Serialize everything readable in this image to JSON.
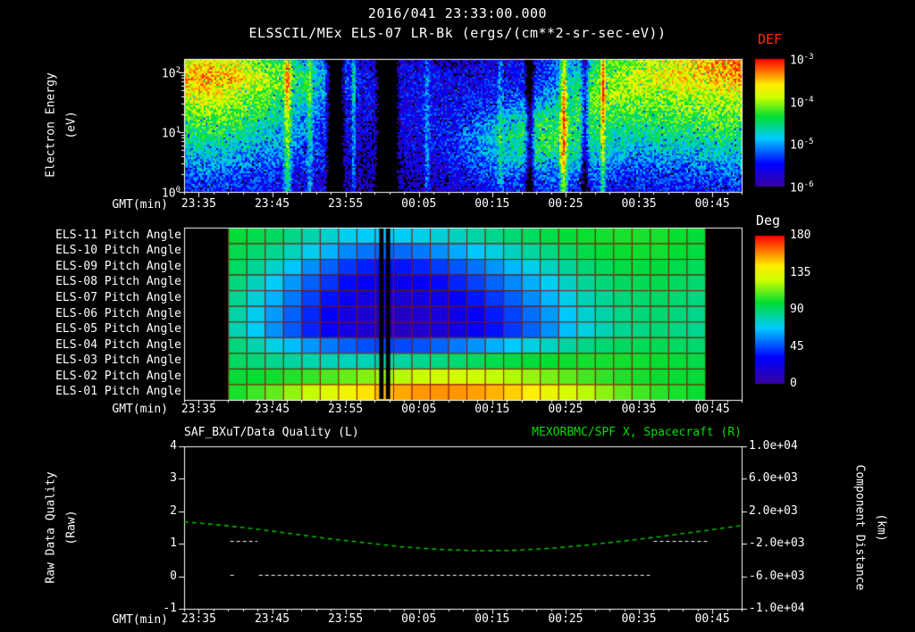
{
  "header": {
    "datetime": "2016/041 23:33:00.000",
    "instrument": "ELSSCIL/MEx ELS-07 LR-Bk  (ergs/(cm**2-sr-sec-eV))"
  },
  "time_axis": {
    "label": "GMT(min)",
    "start": "23:33",
    "span_minutes": 76,
    "ticks": [
      "23:35",
      "23:45",
      "23:55",
      "00:05",
      "00:15",
      "00:25",
      "00:35",
      "00:45"
    ]
  },
  "colors": {
    "background": "#000000",
    "foreground": "#ffffff",
    "accent_green": "#00dd00",
    "accent_red": "#ff2d00",
    "grid_maroon": "#801800"
  },
  "chart_data": [
    {
      "type": "heatmap",
      "name": "electron-energy-spectrogram",
      "ylabel": "Electron Energy",
      "ylabel_units": "(eV)",
      "yscale": "log",
      "y_tick_exponents": [
        2,
        1,
        0
      ],
      "energy_range_ev": [
        1,
        166
      ],
      "colorbar": {
        "label": "DEF",
        "tick_exponents": [
          -3,
          -4,
          -5,
          -6
        ],
        "log10_range": [
          -6,
          -3
        ]
      },
      "grid_log10_flux": [
        [
          -3.8,
          -3.7,
          -3.8,
          -4.1,
          -4.4,
          -4.8,
          -5.2,
          -5.6,
          -5.8,
          -5.7,
          -5.7,
          -5.8,
          -5.7,
          -5.6,
          -5.6,
          -5.4,
          -5.0,
          -4.5,
          -4.2,
          -4.0,
          -3.8,
          -3.6,
          -3.4,
          -3.3
        ],
        [
          -3.5,
          -3.4,
          -3.5,
          -3.8,
          -4.1,
          -4.5,
          -5.0,
          -5.4,
          -5.6,
          -5.6,
          -5.5,
          -5.6,
          -5.6,
          -5.5,
          -5.4,
          -5.2,
          -4.7,
          -4.2,
          -3.9,
          -3.8,
          -3.7,
          -3.6,
          -3.5,
          -3.4
        ],
        [
          -3.8,
          -3.7,
          -3.9,
          -4.1,
          -4.4,
          -4.7,
          -5.1,
          -5.5,
          -5.6,
          -5.6,
          -5.5,
          -5.5,
          -5.5,
          -5.4,
          -5.2,
          -5.0,
          -4.5,
          -4.1,
          -4.0,
          -4.0,
          -4.0,
          -3.9,
          -3.9,
          -3.8
        ],
        [
          -4.2,
          -4.1,
          -4.2,
          -4.4,
          -4.7,
          -5.0,
          -5.3,
          -5.6,
          -5.7,
          -5.6,
          -5.5,
          -5.5,
          -5.3,
          -5.0,
          -4.6,
          -4.4,
          -4.4,
          -4.3,
          -4.3,
          -4.3,
          -4.3,
          -4.2,
          -4.2,
          -4.1
        ],
        [
          -4.5,
          -4.4,
          -4.5,
          -4.7,
          -4.9,
          -5.1,
          -5.4,
          -5.7,
          -5.7,
          -5.6,
          -5.5,
          -5.4,
          -5.1,
          -4.7,
          -4.4,
          -4.3,
          -4.4,
          -4.5,
          -4.6,
          -4.6,
          -4.5,
          -4.5,
          -4.4,
          -4.4
        ],
        [
          -4.9,
          -4.8,
          -4.9,
          -5.0,
          -5.1,
          -5.3,
          -5.5,
          -5.8,
          -5.8,
          -5.7,
          -5.6,
          -5.4,
          -5.2,
          -4.9,
          -4.6,
          -4.5,
          -4.6,
          -4.8,
          -4.9,
          -5.0,
          -4.9,
          -4.9,
          -4.8,
          -4.8
        ],
        [
          -5.2,
          -5.1,
          -5.2,
          -5.3,
          -5.4,
          -5.5,
          -5.6,
          -5.8,
          -5.9,
          -5.8,
          -5.7,
          -5.6,
          -5.4,
          -5.2,
          -5.1,
          -5.1,
          -5.1,
          -5.2,
          -5.3,
          -5.3,
          -5.3,
          -5.2,
          -5.2,
          -5.2
        ],
        [
          -5.5,
          -5.4,
          -5.5,
          -5.5,
          -5.6,
          -5.6,
          -5.7,
          -5.9,
          -5.9,
          -5.9,
          -5.8,
          -5.7,
          -5.6,
          -5.5,
          -5.5,
          -5.4,
          -5.5,
          -5.5,
          -5.6,
          -5.5,
          -5.5,
          -5.5,
          -5.5,
          -5.4
        ]
      ],
      "streaks": [
        {
          "min": 14,
          "halfwidth": 0.7,
          "amp": 1.1
        },
        {
          "min": 17,
          "halfwidth": 0.5,
          "amp": 0.7
        },
        {
          "min": 20.5,
          "halfwidth": 1.4,
          "amp": -2.4
        },
        {
          "min": 23,
          "halfwidth": 0.4,
          "amp": 0.9
        },
        {
          "min": 27.6,
          "halfwidth": 1.7,
          "amp": -2.6
        },
        {
          "min": 33,
          "halfwidth": 0.5,
          "amp": 0.6
        },
        {
          "min": 43,
          "halfwidth": 0.5,
          "amp": 0.5
        },
        {
          "min": 47,
          "halfwidth": 0.8,
          "amp": -1.4
        },
        {
          "min": 51.6,
          "halfwidth": 0.7,
          "amp": 1.4
        },
        {
          "min": 54.5,
          "halfwidth": 0.7,
          "amp": -1.2
        },
        {
          "min": 57,
          "halfwidth": 0.5,
          "amp": 1.0
        }
      ]
    },
    {
      "type": "heatmap",
      "name": "pitch-angle-panel",
      "value_range_deg": [
        0,
        180
      ],
      "colorbar": {
        "label": "Deg",
        "ticks": [
          180,
          135,
          90,
          45,
          0
        ]
      },
      "data_start": "23:39",
      "data_end": "00:44",
      "gaps_min": [
        [
          26.6,
          27.2
        ],
        [
          27.5,
          28.1
        ]
      ],
      "rows": [
        {
          "label": "ELS-11 Pitch Angle",
          "values": [
            98,
            92,
            80,
            70,
            68,
            72,
            80,
            88,
            95,
            100,
            102,
            102,
            98
          ]
        },
        {
          "label": "ELS-10 Pitch Angle",
          "values": [
            95,
            85,
            70,
            55,
            50,
            55,
            65,
            76,
            86,
            95,
            100,
            101,
            97
          ]
        },
        {
          "label": "ELS-09 Pitch Angle",
          "values": [
            92,
            76,
            56,
            40,
            34,
            40,
            50,
            62,
            76,
            88,
            96,
            98,
            93
          ]
        },
        {
          "label": "ELS-08 Pitch Angle",
          "values": [
            88,
            68,
            48,
            32,
            26,
            31,
            41,
            54,
            68,
            83,
            92,
            95,
            90
          ]
        },
        {
          "label": "ELS-07 Pitch Angle",
          "values": [
            85,
            63,
            42,
            25,
            18,
            23,
            33,
            46,
            62,
            78,
            88,
            92,
            88
          ]
        },
        {
          "label": "ELS-06 Pitch Angle",
          "values": [
            82,
            59,
            38,
            20,
            12,
            17,
            27,
            41,
            57,
            74,
            86,
            90,
            86
          ]
        },
        {
          "label": "ELS-05 Pitch Angle",
          "values": [
            80,
            57,
            37,
            19,
            11,
            15,
            25,
            39,
            55,
            72,
            84,
            89,
            85
          ]
        },
        {
          "label": "ELS-04 Pitch Angle",
          "values": [
            88,
            72,
            58,
            48,
            44,
            48,
            56,
            66,
            76,
            86,
            92,
            94,
            90
          ]
        },
        {
          "label": "ELS-03 Pitch Angle",
          "values": [
            92,
            85,
            80,
            78,
            81,
            86,
            91,
            96,
            99,
            101,
            101,
            100,
            96
          ]
        },
        {
          "label": "ELS-02 Pitch Angle",
          "values": [
            98,
            101,
            106,
            113,
            121,
            127,
            128,
            124,
            116,
            108,
            103,
            100,
            98
          ]
        },
        {
          "label": "ELS-01 Pitch Angle",
          "values": [
            102,
            112,
            126,
            141,
            153,
            158,
            157,
            151,
            139,
            125,
            112,
            104,
            100
          ]
        }
      ]
    },
    {
      "type": "line",
      "name": "quality-distance-panel",
      "title_left": "SAF_BXuT/Data Quality (L)",
      "title_right": "MEXORBMC/SPF X, Spacecraft (R)",
      "left_axis": {
        "label": "Raw Data Quality",
        "units": "(Raw)",
        "ticks": [
          4,
          3,
          2,
          1,
          0,
          -1
        ],
        "range": [
          -1,
          4
        ]
      },
      "right_axis": {
        "label": "Component Distance",
        "units": "(km)",
        "ticks": [
          "1.0e+04",
          "6.0e+03",
          "2.0e+03",
          "-2.0e+03",
          "-6.0e+03",
          "-1.0e+04"
        ],
        "range": [
          -10000,
          10000
        ]
      },
      "series": [
        {
          "name": "spacecraft-x-distance",
          "axis": "right",
          "style": "dashed",
          "color": "#00dd00",
          "x_min": [
            0,
            5,
            10,
            15,
            20,
            25,
            30,
            35,
            40,
            45,
            50,
            55,
            60,
            65,
            70,
            76
          ],
          "km": [
            700,
            300,
            -200,
            -800,
            -1400,
            -1900,
            -2400,
            -2700,
            -2850,
            -2800,
            -2550,
            -2150,
            -1650,
            -1100,
            -500,
            250
          ]
        },
        {
          "name": "data-quality-flags",
          "axis": "left",
          "style": "dashed",
          "color": "#ffffff",
          "segments": [
            {
              "value": 1.1,
              "from_min": 6.3,
              "to_min": 10.0
            },
            {
              "value": 1.1,
              "from_min": 64.0,
              "to_min": 71.5
            },
            {
              "value": 0.05,
              "from_min": 6.3,
              "to_min": 7.0
            },
            {
              "value": 0.05,
              "from_min": 10.2,
              "to_min": 63.5
            }
          ]
        }
      ]
    }
  ]
}
